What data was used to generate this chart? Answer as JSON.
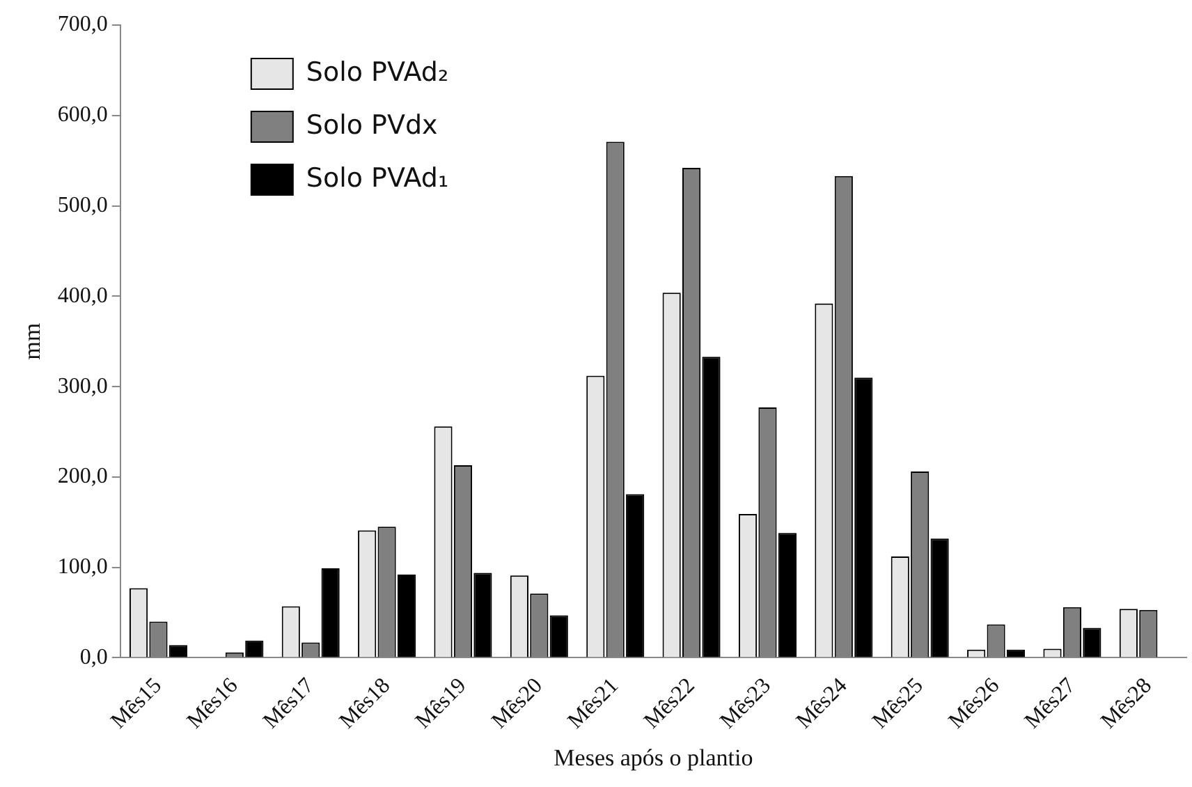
{
  "chart_data": {
    "type": "bar",
    "xlabel": "Meses após o plantio",
    "ylabel": "mm",
    "categories": [
      "Mês15",
      "Mês16",
      "Mês17",
      "Mês18",
      "Mês19",
      "Mês20",
      "Mês21",
      "Mês22",
      "Mês23",
      "Mês24",
      "Mês25",
      "Mês26",
      "Mês27",
      "Mês28"
    ],
    "series": [
      {
        "name": "Solo PVAd₂",
        "color": "#e6e6e6",
        "values": [
          77,
          0,
          57,
          141,
          256,
          91,
          312,
          404,
          159,
          392,
          112,
          9,
          10,
          54
        ]
      },
      {
        "name": "Solo PVdx",
        "color": "#808080",
        "values": [
          40,
          6,
          17,
          145,
          213,
          71,
          571,
          542,
          277,
          533,
          206,
          37,
          56,
          53
        ]
      },
      {
        "name": "Solo PVAd₁",
        "color": "#000000",
        "values": [
          14,
          19,
          99,
          92,
          94,
          47,
          181,
          333,
          138,
          310,
          132,
          9,
          33,
          null
        ]
      }
    ],
    "ylim": [
      0,
      700
    ],
    "yticks": [
      {
        "value": 0,
        "label": "0,0"
      },
      {
        "value": 100,
        "label": "100,0"
      },
      {
        "value": 200,
        "label": "200,0"
      },
      {
        "value": 300,
        "label": "300,0"
      },
      {
        "value": 400,
        "label": "400,0"
      },
      {
        "value": 500,
        "label": "500,0"
      },
      {
        "value": 600,
        "label": "600,0"
      },
      {
        "value": 700,
        "label": "700,0"
      }
    ],
    "grid": false,
    "legend": "top left"
  }
}
